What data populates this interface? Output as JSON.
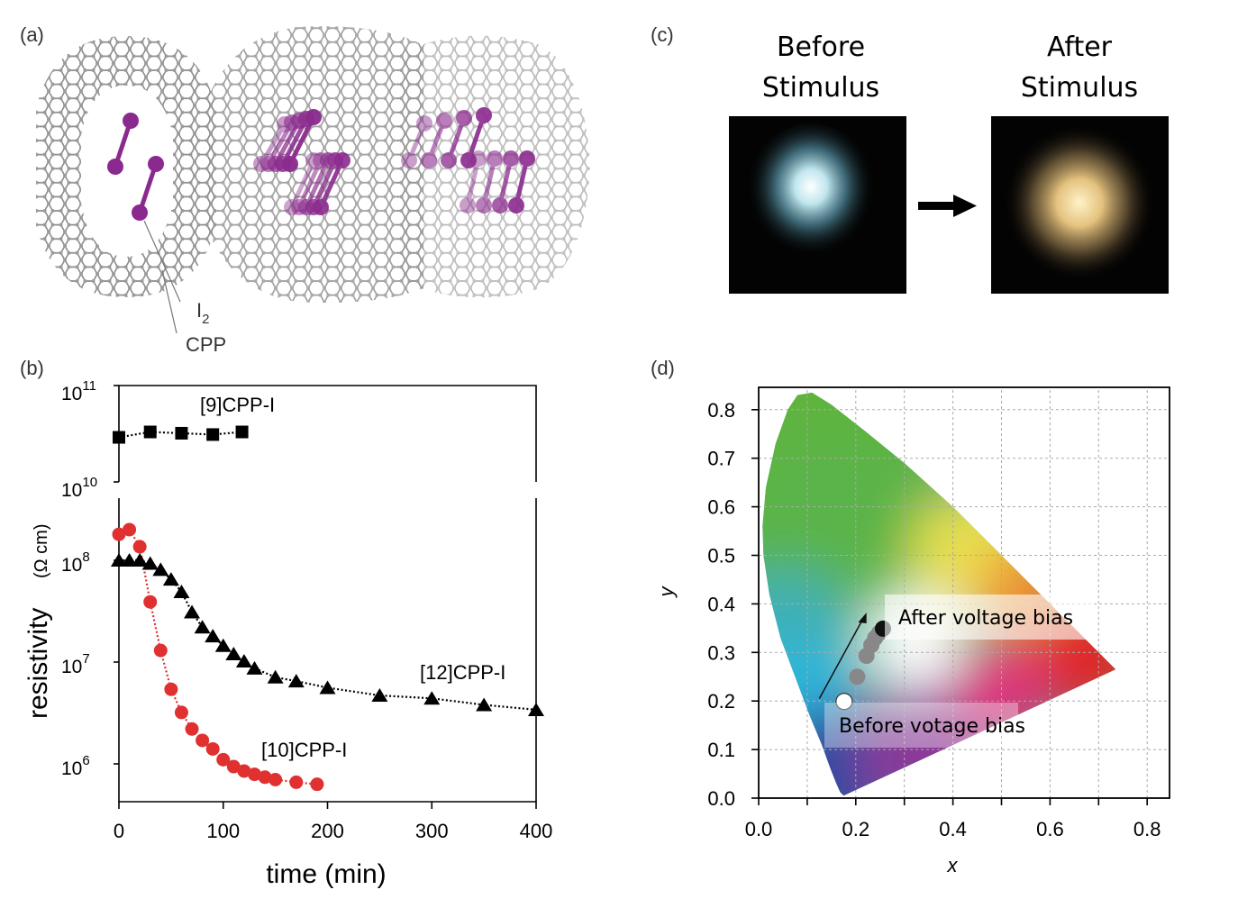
{
  "panels": {
    "a": {
      "label": "(a)",
      "annot_i2": "I",
      "annot_i2_sub": "2",
      "annot_cpp": "CPP"
    },
    "b": {
      "label": "(b)"
    },
    "c": {
      "label": "(c)",
      "before_line1": "Before",
      "before_line2": "Stimulus",
      "after_line1": "After",
      "after_line2": "Stimulus",
      "arrow_icon": "right-arrow"
    },
    "d": {
      "label": "(d)"
    }
  },
  "colors": {
    "molecule_gray": "#8a8a8a",
    "iodine_purple": "#8b2a8e",
    "series_red": "#e03030",
    "series_black": "#000000"
  },
  "chart_data": [
    {
      "type": "line",
      "panel": "b",
      "xlabel": "time (min)",
      "ylabel": "resistivity",
      "ylabel_unit": "(Ω cm)",
      "xlim": [
        0,
        400
      ],
      "y_scale": "log",
      "y_axis_break": [
        1000000000.0,
        10000000000.0
      ],
      "ylim_upper": [
        10000000000.0,
        100000000000.0
      ],
      "ylim_lower": [
        430000.0,
        400000000.0
      ],
      "x_ticks": [
        "0",
        "100",
        "200",
        "300",
        "400"
      ],
      "y_ticks": [
        {
          "base": "10",
          "exp": "11",
          "value": 100000000000.0
        },
        {
          "base": "10",
          "exp": "10",
          "value": 10000000000.0
        },
        {
          "base": "10",
          "exp": "8",
          "value": 100000000.0
        },
        {
          "base": "10",
          "exp": "7",
          "value": 10000000.0
        },
        {
          "base": "10",
          "exp": "6",
          "value": 1000000.0
        }
      ],
      "grid": false,
      "series": [
        {
          "name": "[9]CPP-I",
          "marker": "square",
          "color": "#000000",
          "x": [
            0,
            30,
            60,
            90,
            118
          ],
          "y": [
            29000000000.0,
            33000000000.0,
            32000000000.0,
            31000000000.0,
            33000000000.0
          ]
        },
        {
          "name": "[10]CPP-I",
          "marker": "circle",
          "color": "#e03030",
          "x": [
            0,
            10,
            20,
            30,
            40,
            50,
            60,
            70,
            80,
            90,
            100,
            110,
            120,
            130,
            140,
            150,
            170,
            190
          ],
          "y": [
            180000000.0,
            200000000.0,
            136000000.0,
            39000000.0,
            13000000.0,
            5400000.0,
            3200000.0,
            2200000.0,
            1700000.0,
            1400000.0,
            1100000.0,
            940000.0,
            850000.0,
            790000.0,
            740000.0,
            700000.0,
            660000.0,
            630000.0
          ]
        },
        {
          "name": "[12]CPP-I",
          "marker": "triangle",
          "color": "#000000",
          "x": [
            0,
            10,
            20,
            30,
            40,
            50,
            60,
            70,
            80,
            90,
            100,
            110,
            120,
            130,
            150,
            170,
            200,
            250,
            300,
            350,
            400
          ],
          "y": [
            100000000.0,
            100000000.0,
            100000000.0,
            93000000.0,
            81000000.0,
            65000000.0,
            49000000.0,
            31000000.0,
            22000000.0,
            18000000.0,
            14500000.0,
            12000000.0,
            10200000.0,
            8700000.0,
            7100000.0,
            6500000.0,
            5600000.0,
            4700000.0,
            4400000.0,
            3800000.0,
            3400000.0
          ]
        }
      ]
    },
    {
      "type": "scatter",
      "panel": "d",
      "xlabel": "x",
      "ylabel": "y",
      "xlim": [
        0,
        0.85
      ],
      "ylim": [
        0,
        0.85
      ],
      "x_ticks": [
        "0.0",
        "0.2",
        "0.4",
        "0.6",
        "0.8"
      ],
      "y_ticks": [
        "0.0",
        "0.1",
        "0.2",
        "0.3",
        "0.4",
        "0.5",
        "0.6",
        "0.7",
        "0.8"
      ],
      "grid": true,
      "background": "CIE 1931 chromaticity diagram",
      "points": [
        {
          "x": 0.176,
          "y": 0.199,
          "fill": "#ffffff"
        },
        {
          "x": 0.203,
          "y": 0.25,
          "fill": "#888888"
        },
        {
          "x": 0.222,
          "y": 0.293,
          "fill": "#888888"
        },
        {
          "x": 0.232,
          "y": 0.315,
          "fill": "#888888"
        },
        {
          "x": 0.24,
          "y": 0.33,
          "fill": "#888888"
        },
        {
          "x": 0.248,
          "y": 0.34,
          "fill": "#888888"
        },
        {
          "x": 0.256,
          "y": 0.349,
          "fill": "#111111"
        }
      ],
      "annotations": {
        "after": "After voltage bias",
        "before": "Before votage bias"
      }
    }
  ]
}
